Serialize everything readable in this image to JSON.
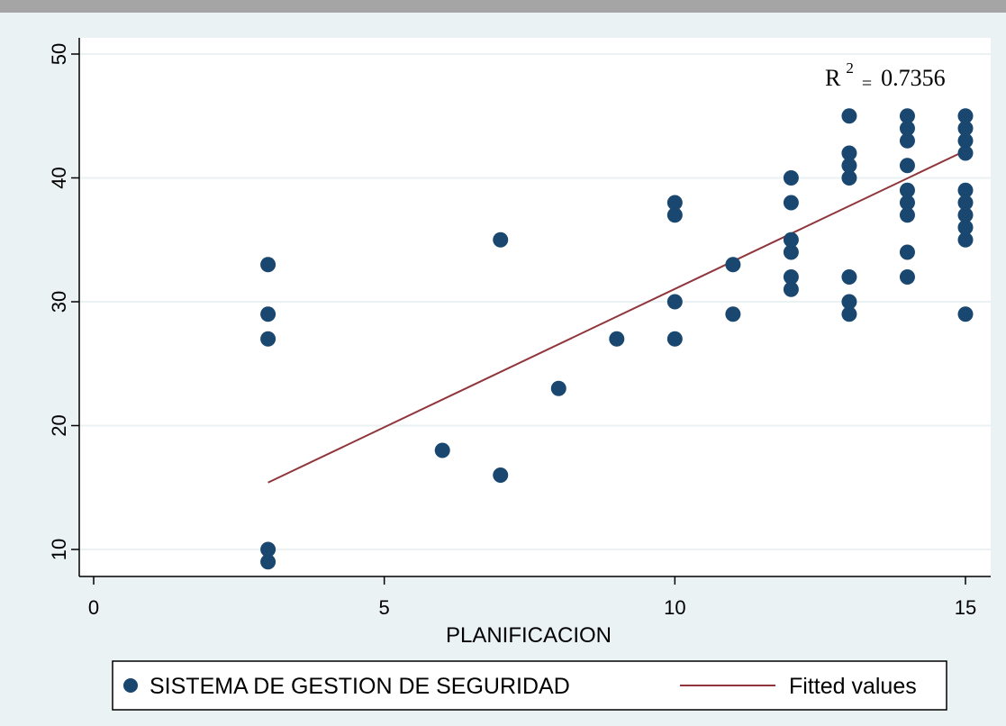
{
  "chart_data": {
    "type": "scatter",
    "xlabel": "PLANIFICACION",
    "ylabel": "",
    "xlim": [
      0,
      15
    ],
    "ylim": [
      8.5,
      51
    ],
    "x_ticks": [
      0,
      5,
      10,
      15
    ],
    "y_ticks": [
      10,
      20,
      30,
      40,
      50
    ],
    "grid": true,
    "annotation": {
      "r_label": "R",
      "sup": "2",
      "eq": "=",
      "value": "0.7356"
    },
    "series": [
      {
        "name": "SISTEMA DE GESTION DE SEGURIDAD",
        "kind": "scatter",
        "color": "#1a476f",
        "points": [
          [
            3,
            33
          ],
          [
            3,
            29
          ],
          [
            3,
            27
          ],
          [
            3,
            10
          ],
          [
            3,
            9
          ],
          [
            6,
            18
          ],
          [
            7,
            35
          ],
          [
            7,
            16
          ],
          [
            8,
            23
          ],
          [
            9,
            27
          ],
          [
            10,
            38
          ],
          [
            10,
            37
          ],
          [
            10,
            30
          ],
          [
            10,
            27
          ],
          [
            11,
            33
          ],
          [
            11,
            29
          ],
          [
            12,
            40
          ],
          [
            12,
            38
          ],
          [
            12,
            35
          ],
          [
            12,
            34
          ],
          [
            12,
            32
          ],
          [
            12,
            31
          ],
          [
            13,
            45
          ],
          [
            13,
            42
          ],
          [
            13,
            41
          ],
          [
            13,
            40
          ],
          [
            13,
            32
          ],
          [
            13,
            30
          ],
          [
            13,
            29
          ],
          [
            14,
            45
          ],
          [
            14,
            44
          ],
          [
            14,
            43
          ],
          [
            14,
            41
          ],
          [
            14,
            39
          ],
          [
            14,
            38
          ],
          [
            14,
            37
          ],
          [
            14,
            34
          ],
          [
            14,
            32
          ],
          [
            15,
            45
          ],
          [
            15,
            44
          ],
          [
            15,
            43
          ],
          [
            15,
            42
          ],
          [
            15,
            39
          ],
          [
            15,
            38
          ],
          [
            15,
            37
          ],
          [
            15,
            36
          ],
          [
            15,
            35
          ],
          [
            15,
            29
          ]
        ]
      },
      {
        "name": "Fitted values",
        "kind": "line",
        "color": "#90353b",
        "points": [
          [
            3,
            15.4
          ],
          [
            15,
            42.2
          ]
        ]
      }
    ],
    "legend": {
      "position": "bottom"
    }
  },
  "colors": {
    "background": "#eaf2f3",
    "plot_area": "#ffffff",
    "grid": "#eaf2f3",
    "marker": "#1a476f",
    "fit_line": "#90353b",
    "top_bar": "#a5a5a5"
  }
}
